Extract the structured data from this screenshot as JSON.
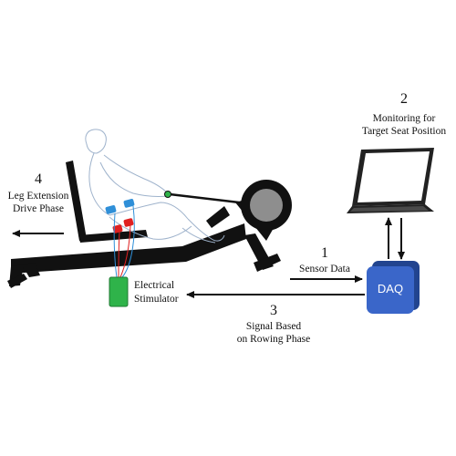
{
  "colors": {
    "daq": "#3a66c9",
    "stimulator": "#2fb34a",
    "electrode_blue": "#2f8fd8",
    "electrode_red": "#e02020",
    "machine": "#111111"
  },
  "steps": [
    {
      "number": "1",
      "lines": [
        "Sensor Data"
      ]
    },
    {
      "number": "2",
      "lines": [
        "Monitoring for",
        "Target Seat Position"
      ]
    },
    {
      "number": "3",
      "lines": [
        "Signal Based",
        "on Rowing Phase"
      ]
    },
    {
      "number": "4",
      "lines": [
        "Leg Extension",
        "Drive Phase"
      ]
    }
  ],
  "devices": {
    "daq_label": "DAQ",
    "stimulator_lines": [
      "Electrical",
      "Stimulator"
    ]
  },
  "icons": [
    "rowing-machine-icon",
    "rower-figure-icon",
    "laptop-icon",
    "daq-box-icon",
    "stimulator-box-icon"
  ]
}
